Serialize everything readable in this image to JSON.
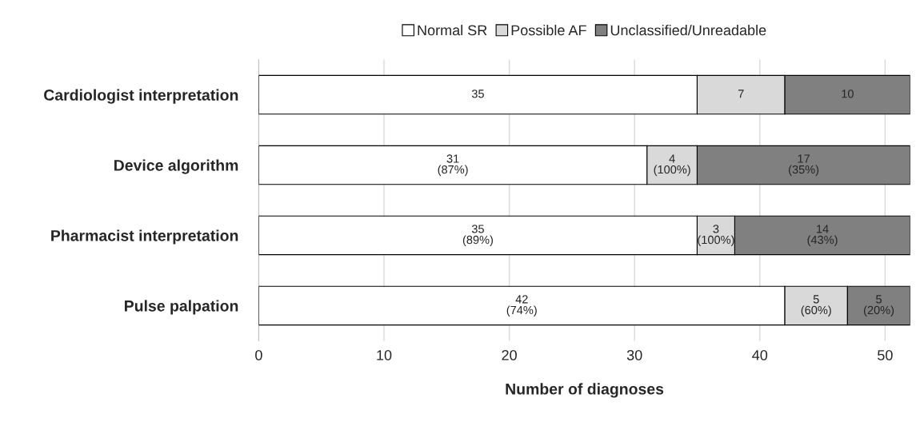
{
  "chart_data": {
    "type": "bar",
    "orientation": "horizontal",
    "stacked": true,
    "categories": [
      "Cardiologist interpretation",
      "Device algorithm",
      "Pharmacist interpretation",
      "Pulse palpation"
    ],
    "series": [
      {
        "name": "Normal SR",
        "color": "#ffffff",
        "values": [
          35,
          31,
          35,
          42
        ],
        "value_labels": [
          "35",
          "31\n(87%)",
          "35\n(89%)",
          "42\n(74%)"
        ]
      },
      {
        "name": "Possible AF",
        "color": "#d9d9d9",
        "values": [
          7,
          4,
          3,
          5
        ],
        "value_labels": [
          "7",
          "4\n(100%)",
          "3\n(100%)",
          "5\n(60%)"
        ]
      },
      {
        "name": "Unclassified/Unreadable",
        "color": "#808080",
        "values": [
          10,
          17,
          14,
          5
        ],
        "value_labels": [
          "10",
          "17\n(35%)",
          "14\n(43%)",
          "5\n(20%)"
        ]
      }
    ],
    "xlabel": "Number of diagnoses",
    "xlim": [
      0,
      52
    ],
    "xticks": [
      0,
      10,
      20,
      30,
      40,
      50
    ],
    "grid": "x",
    "legend": "top"
  }
}
